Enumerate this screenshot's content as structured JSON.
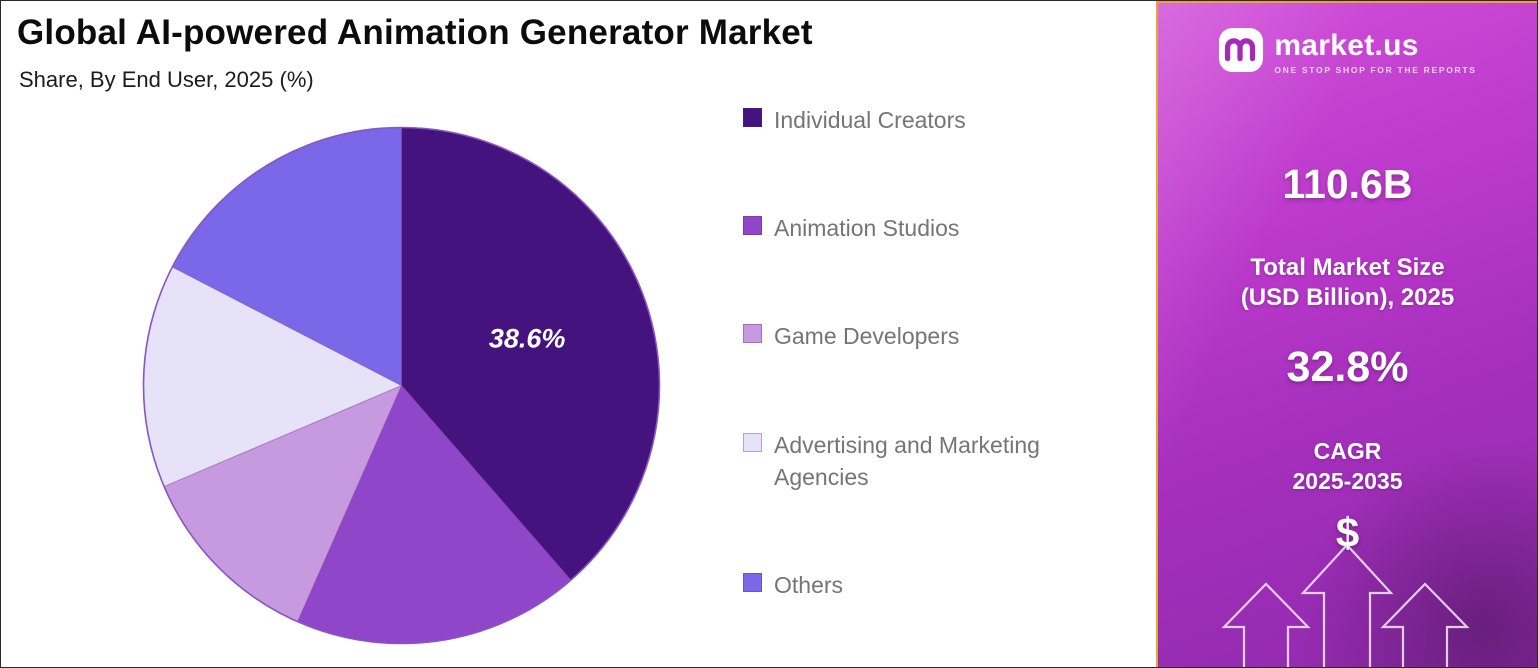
{
  "title": "Global AI-powered Animation Generator Market",
  "subtitle": "Share, By End User, 2025 (%)",
  "chart_data": {
    "type": "pie",
    "title": "Global AI-powered Animation Generator Market",
    "subtitle": "Share, By End User, 2025 (%)",
    "unit": "%",
    "start_angle_deg": 0,
    "direction": "clockwise",
    "legend_position": "right",
    "slices": [
      {
        "label": "Individual Creators",
        "value": 38.6,
        "color": "#45137D",
        "data_label": "38.6%"
      },
      {
        "label": "Animation Studios",
        "value": 18.0,
        "color": "#8F46C9",
        "data_label": ""
      },
      {
        "label": "Game Developers",
        "value": 12.0,
        "color": "#C79ADF",
        "data_label": ""
      },
      {
        "label": "Advertising and Marketing Agencies",
        "value": 14.0,
        "color": "#E6E2F7",
        "data_label": ""
      },
      {
        "label": "Others",
        "value": 17.4,
        "color": "#7A68E8",
        "data_label": ""
      }
    ]
  },
  "sidebar": {
    "brand": {
      "name": "market.us",
      "tagline": "ONE STOP SHOP FOR THE REPORTS"
    },
    "stats": {
      "market_size_value": "110.6B",
      "market_size_label_1": "Total Market Size",
      "market_size_label_2": "(USD Billion), 2025",
      "cagr_value": "32.8%",
      "cagr_label_1": "CAGR",
      "cagr_label_2": "2025-2035"
    },
    "dollar_icon": "$",
    "accent_border_color": "#E9A23C",
    "gradient_top_color": "#D14FD9",
    "gradient_bottom_color": "#8E2AAB"
  }
}
